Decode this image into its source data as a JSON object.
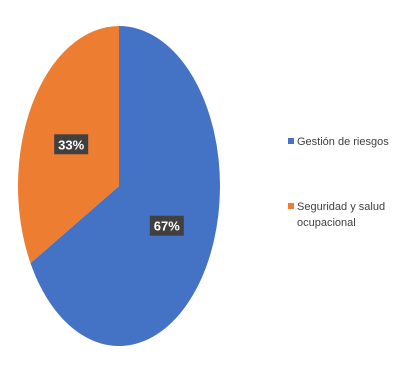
{
  "chart_data": {
    "type": "pie",
    "categories": [
      "Gestión de riesgos",
      "Seguridad y salud ocupacional"
    ],
    "values": [
      67,
      33
    ],
    "data_labels": [
      "67%",
      "33%"
    ],
    "legend": {
      "position": "right",
      "entries": [
        {
          "lines": [
            "Gestión de riesgos"
          ]
        },
        {
          "lines": [
            "Seguridad y salud",
            "ocupacional"
          ]
        }
      ]
    },
    "colors": [
      "#4472c4",
      "#ed7d31"
    ],
    "label_box_color": "#404040"
  }
}
